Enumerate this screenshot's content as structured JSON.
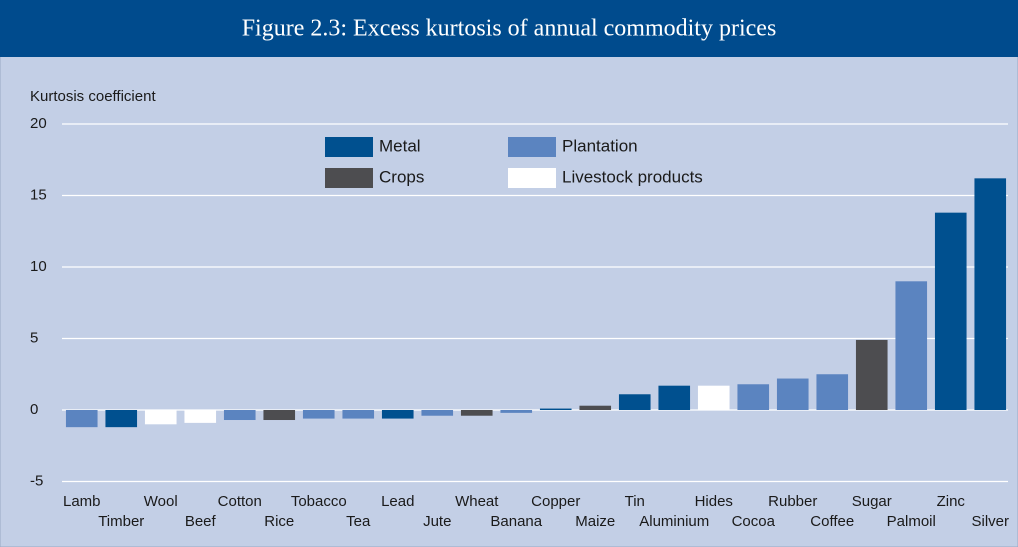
{
  "chart_data": {
    "type": "bar",
    "title": "Figure 2.3: Excess kurtosis of annual commodity prices",
    "y_label": "Kurtosis coefficient",
    "categories": [
      "Lamb",
      "Timber",
      "Wool",
      "Beef",
      "Cotton",
      "Rice",
      "Tobacco",
      "Tea",
      "Lead",
      "Jute",
      "Wheat",
      "Banana",
      "Copper",
      "Maize",
      "Tin",
      "Aluminium",
      "Hides",
      "Cocoa",
      "Rubber",
      "Coffee",
      "Sugar",
      "Palmoil",
      "Zinc",
      "Silver"
    ],
    "series": [
      {
        "name": "Metal",
        "color": "#00508f",
        "values": [
          null,
          -1.2,
          null,
          null,
          null,
          null,
          null,
          null,
          -0.6,
          null,
          null,
          null,
          0.1,
          null,
          1.1,
          1.7,
          null,
          null,
          null,
          null,
          null,
          null,
          13.8,
          16.2
        ]
      },
      {
        "name": "Plantation",
        "color": "#5b84c0",
        "values": [
          -1.2,
          null,
          null,
          null,
          -0.7,
          null,
          -0.6,
          -0.6,
          null,
          -0.4,
          null,
          -0.2,
          null,
          null,
          null,
          null,
          null,
          1.8,
          2.2,
          2.5,
          null,
          9.0,
          null,
          null
        ]
      },
      {
        "name": "Crops",
        "color": "#4d4d50",
        "values": [
          null,
          null,
          null,
          null,
          null,
          -0.7,
          null,
          null,
          null,
          null,
          -0.4,
          null,
          null,
          0.3,
          null,
          null,
          null,
          null,
          null,
          null,
          4.9,
          null,
          null,
          null
        ]
      },
      {
        "name": "Livestock products",
        "color": "#ffffff",
        "values": [
          null,
          null,
          -1.0,
          -0.9,
          null,
          null,
          null,
          null,
          null,
          null,
          null,
          null,
          null,
          null,
          null,
          null,
          1.7,
          null,
          null,
          null,
          null,
          null,
          null,
          null
        ]
      }
    ],
    "ylim": [
      -5,
      20
    ],
    "yticks": [
      -5,
      0,
      5,
      10,
      15,
      20
    ],
    "grid": true
  }
}
